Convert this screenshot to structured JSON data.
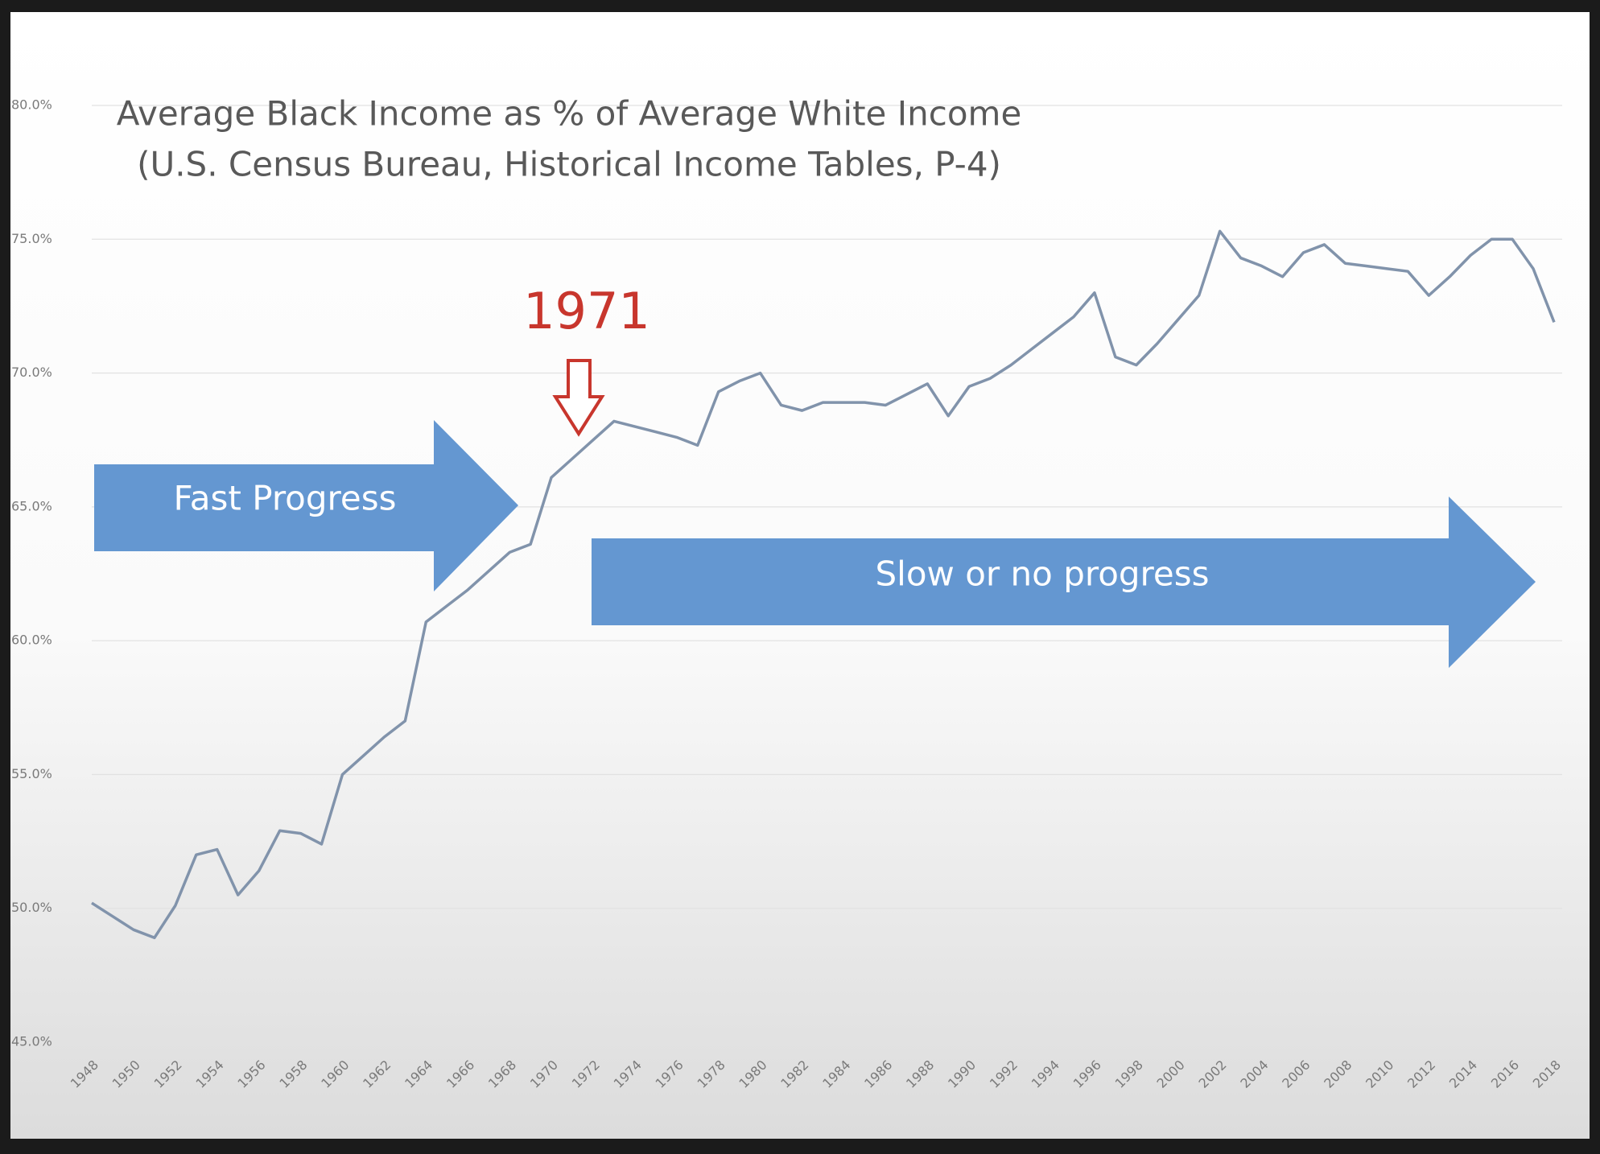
{
  "chart_data": {
    "type": "line",
    "title": "Average Black Income as % of Average White Income",
    "subtitle": "(U.S. Census Bureau, Historical Income Tables, P-4)",
    "annotations": [
      "1971",
      "Fast Progress",
      "Slow or no progress"
    ],
    "x": [
      1948,
      1949,
      1950,
      1951,
      1952,
      1953,
      1954,
      1955,
      1956,
      1957,
      1958,
      1959,
      1960,
      1961,
      1962,
      1963,
      1964,
      1965,
      1966,
      1967,
      1968,
      1969,
      1970,
      1971,
      1972,
      1973,
      1974,
      1975,
      1976,
      1977,
      1978,
      1979,
      1980,
      1981,
      1982,
      1983,
      1984,
      1985,
      1986,
      1987,
      1988,
      1989,
      1990,
      1991,
      1992,
      1993,
      1994,
      1995,
      1996,
      1997,
      1998,
      1999,
      2000,
      2001,
      2002,
      2003,
      2004,
      2005,
      2006,
      2007,
      2008,
      2009,
      2010,
      2011,
      2012,
      2013,
      2014,
      2015,
      2016,
      2017,
      2018
    ],
    "values": [
      50.2,
      49.7,
      49.2,
      48.9,
      50.1,
      52.0,
      52.2,
      50.5,
      51.4,
      52.9,
      52.8,
      52.4,
      55.0,
      55.7,
      56.4,
      57.0,
      60.7,
      61.3,
      61.9,
      62.6,
      63.3,
      63.6,
      66.1,
      66.8,
      67.5,
      68.2,
      68.0,
      67.8,
      67.6,
      67.3,
      69.3,
      69.7,
      70.0,
      68.8,
      68.6,
      68.9,
      68.9,
      68.9,
      68.8,
      69.2,
      69.6,
      68.4,
      69.5,
      69.8,
      70.3,
      70.9,
      71.5,
      72.1,
      73.0,
      70.6,
      70.3,
      71.1,
      72.0,
      72.9,
      75.3,
      74.3,
      74.0,
      73.6,
      74.5,
      74.8,
      74.1,
      74.0,
      73.9,
      73.8,
      72.9,
      73.6,
      74.4,
      75.0,
      75.0,
      73.9,
      71.9
    ],
    "color": "#8193ab",
    "xlim": [
      1948,
      2018
    ],
    "xticks": [
      1948,
      1950,
      1952,
      1954,
      1956,
      1958,
      1960,
      1962,
      1964,
      1966,
      1968,
      1970,
      1972,
      1974,
      1976,
      1978,
      1980,
      1982,
      1984,
      1986,
      1988,
      1990,
      1992,
      1994,
      1996,
      1998,
      2000,
      2002,
      2004,
      2006,
      2008,
      2010,
      2012,
      2014,
      2016,
      2018
    ],
    "ylim": [
      45,
      80
    ],
    "yticks": [
      {
        "value": 45,
        "label": "45.0%"
      },
      {
        "value": 50,
        "label": "50.0%"
      },
      {
        "value": 55,
        "label": "55.0%"
      },
      {
        "value": 60,
        "label": "60.0%"
      },
      {
        "value": 65,
        "label": "65.0%"
      },
      {
        "value": 70,
        "label": "70.0%"
      },
      {
        "value": 75,
        "label": "75.0%"
      },
      {
        "value": 80,
        "label": "80.0%"
      }
    ],
    "grid": true
  }
}
